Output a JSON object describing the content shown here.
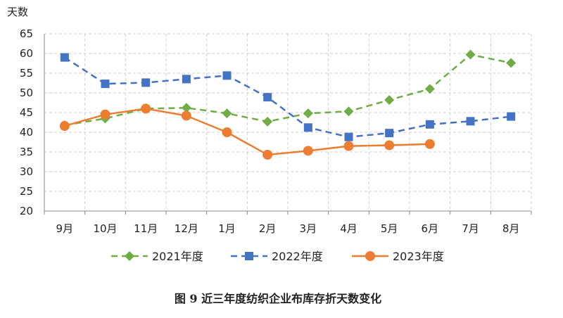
{
  "chart_data": {
    "type": "line",
    "title": "",
    "caption": "图 9   近三年度纺织企业布库存折天数变化",
    "ylabel": "天数",
    "xlabel": "",
    "ylim": [
      20,
      65
    ],
    "yticks": [
      20,
      25,
      30,
      35,
      40,
      45,
      50,
      55,
      60,
      65
    ],
    "grid": true,
    "legend_position": "bottom",
    "categories": [
      "9月",
      "10月",
      "11月",
      "12月",
      "1月",
      "2月",
      "3月",
      "4月",
      "5月",
      "6月",
      "7月",
      "8月"
    ],
    "series": [
      {
        "name": "2021年度",
        "color": "#70ad47",
        "marker": "diamond",
        "dash": true,
        "values": [
          41.8,
          43.5,
          46.0,
          46.2,
          44.8,
          42.7,
          44.8,
          45.3,
          48.2,
          51.0,
          59.7,
          57.6
        ]
      },
      {
        "name": "2022年度",
        "color": "#4472c4",
        "marker": "square",
        "dash": true,
        "values": [
          59.0,
          52.3,
          52.6,
          53.5,
          54.4,
          48.9,
          41.2,
          38.8,
          39.8,
          42.0,
          42.8,
          44.0
        ]
      },
      {
        "name": "2023年度",
        "color": "#ed7d31",
        "marker": "circle",
        "dash": false,
        "values": [
          41.6,
          44.5,
          46.0,
          44.2,
          40.0,
          34.3,
          35.3,
          36.5,
          36.7,
          37.0,
          null,
          null
        ]
      }
    ]
  }
}
